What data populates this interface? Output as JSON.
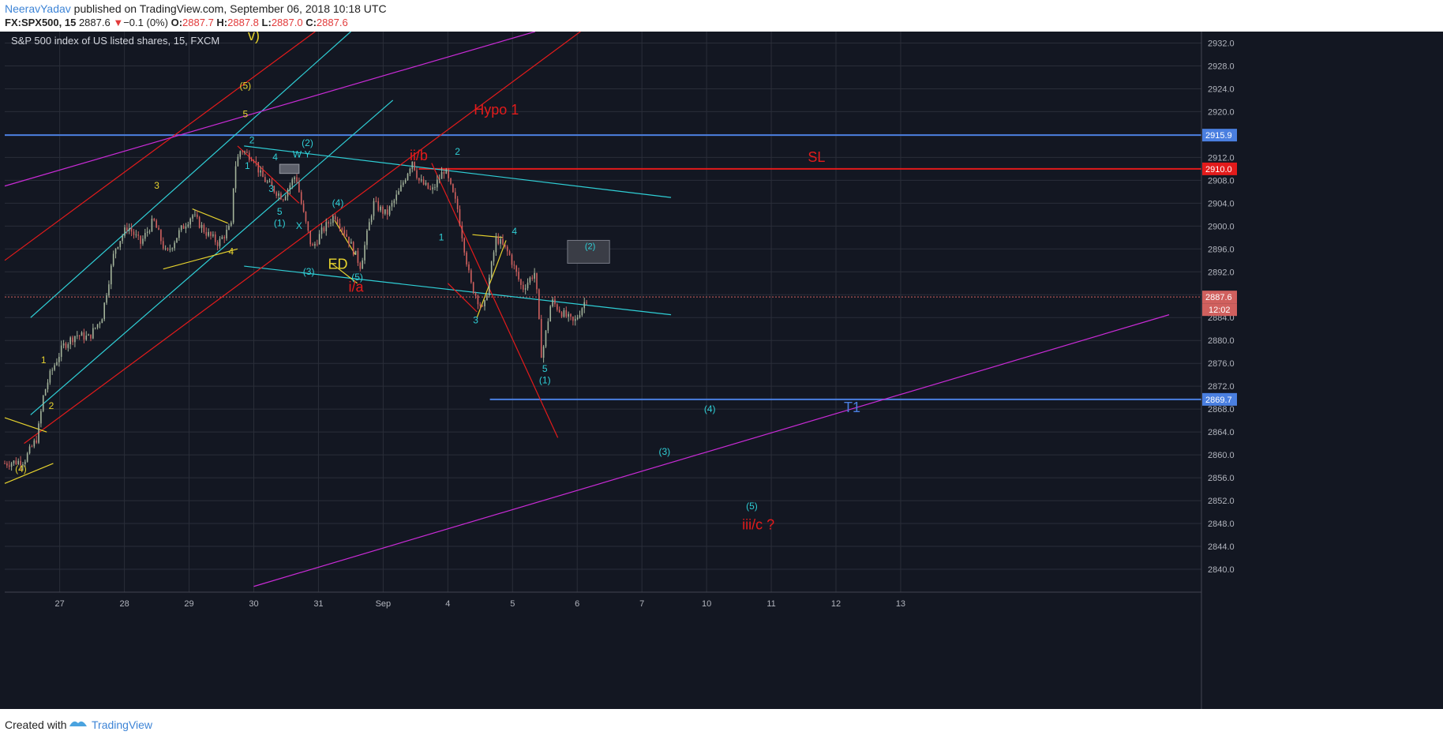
{
  "header": {
    "author": "NeeravYadav",
    "published": " published on TradingView.com, September 06, 2018 10:18 UTC",
    "symbol": "FX:SPX500, 15",
    "last": "2887.6",
    "arrow": "▼",
    "change": "−0.1 (0%)",
    "o_label": "O:",
    "o": "2887.7",
    "h_label": "H:",
    "h": "2887.8",
    "l_label": "L:",
    "l": "2887.0",
    "c_label": "C:",
    "c": "2887.6"
  },
  "footer": {
    "created_with": "Created with",
    "brand": "TradingView"
  },
  "colors": {
    "background": "#131722",
    "grid": "#2a2e39",
    "up": "#a3b39a",
    "down": "#d0605e",
    "cyan": "#2fcfd6",
    "yellow": "#e6d22e",
    "red": "#e31b1b",
    "magenta": "#c92bd6",
    "blue": "#4a7fe0"
  },
  "chart_data": {
    "type": "line",
    "title": "S&P 500 index of US listed shares, 15, FXCM",
    "ylim": [
      2836,
      2934
    ],
    "y_ticks": [
      2840.0,
      2844.0,
      2848.0,
      2852.0,
      2856.0,
      2860.0,
      2864.0,
      2868.0,
      2872.0,
      2876.0,
      2880.0,
      2884.0,
      2888.0,
      2892.0,
      2896.0,
      2900.0,
      2904.0,
      2908.0,
      2912.0,
      2916.0,
      2920.0,
      2924.0,
      2928.0,
      2932.0
    ],
    "x_ticks": [
      "27",
      "28",
      "29",
      "30",
      "31",
      "Sep",
      "4",
      "5",
      "6",
      "7",
      "10",
      "11",
      "12",
      "13"
    ],
    "x_tick_index": [
      0.85,
      1.85,
      2.85,
      3.85,
      4.85,
      5.85,
      6.85,
      7.85,
      8.85,
      9.85,
      10.85,
      11.85,
      12.85,
      13.85
    ],
    "xlim": [
      0,
      18.5
    ],
    "grid": true,
    "series": [
      {
        "x": [
          0.0,
          0.3,
          0.5,
          0.6,
          0.7,
          0.9,
          1.1,
          1.3,
          1.5,
          1.7,
          1.9,
          2.1,
          2.3,
          2.5,
          2.7,
          2.9,
          3.1,
          3.3,
          3.5,
          3.55,
          3.65,
          3.75,
          3.85,
          3.95,
          4.1,
          4.3,
          4.5,
          4.6,
          4.75,
          4.9,
          5.1,
          5.3,
          5.5,
          5.7,
          5.9,
          6.1,
          6.3,
          6.4,
          6.6,
          6.8,
          7.0,
          7.2,
          7.4,
          7.6,
          7.8,
          8.0,
          8.2,
          8.3,
          8.45,
          8.6,
          8.8,
          9.0
        ],
        "y": [
          2858.5,
          2859.0,
          2863.0,
          2870.5,
          2874.0,
          2879.0,
          2881.0,
          2880.5,
          2884.0,
          2896.0,
          2900.0,
          2897.0,
          2901.0,
          2895.0,
          2899.0,
          2902.0,
          2899.0,
          2897.0,
          2900.0,
          2910.0,
          2913.5,
          2912.5,
          2912.0,
          2909.0,
          2907.0,
          2905.0,
          2909.0,
          2903.0,
          2896.0,
          2899.0,
          2902.0,
          2898.0,
          2893.0,
          2904.0,
          2902.0,
          2906.0,
          2911.5,
          2908.0,
          2906.0,
          2910.0,
          2903.0,
          2890.0,
          2885.0,
          2898.0,
          2895.0,
          2889.0,
          2892.0,
          2877.0,
          2887.0,
          2885.0,
          2883.0,
          2887.6
        ]
      }
    ],
    "h_levels": [
      {
        "y": 2915.9,
        "label": "2915.9"
      },
      {
        "y": 2910.0,
        "label": "2910.0"
      },
      {
        "y": 2869.7,
        "label": "2869.7"
      }
    ],
    "last_price_label": "2887.6",
    "countdown_label": "12:02",
    "zone_label": "(2)",
    "annotations": [
      {
        "text": "v)",
        "x": 3.85,
        "y": 2932.5,
        "color": "yellow",
        "size": 18
      },
      {
        "text": "(5)",
        "x": 3.72,
        "y": 2924.0,
        "color": "yellow",
        "size": 12
      },
      {
        "text": "5",
        "x": 3.72,
        "y": 2919.0,
        "color": "yellow",
        "size": 12
      },
      {
        "text": "3",
        "x": 2.35,
        "y": 2906.5,
        "color": "yellow",
        "size": 12
      },
      {
        "text": "4",
        "x": 3.5,
        "y": 2895.0,
        "color": "yellow",
        "size": 12
      },
      {
        "text": "1",
        "x": 0.6,
        "y": 2876.0,
        "color": "yellow",
        "size": 12
      },
      {
        "text": "2",
        "x": 0.72,
        "y": 2868.0,
        "color": "yellow",
        "size": 12
      },
      {
        "text": "(4)",
        "x": 0.25,
        "y": 2857.0,
        "color": "yellow",
        "size": 12
      },
      {
        "text": "ED",
        "x": 5.15,
        "y": 2892.5,
        "color": "yellow",
        "size": 18
      },
      {
        "text": "2",
        "x": 3.82,
        "y": 2914.5,
        "color": "cyan",
        "size": 12
      },
      {
        "text": "1",
        "x": 3.75,
        "y": 2910.0,
        "color": "cyan",
        "size": 12
      },
      {
        "text": "4",
        "x": 4.18,
        "y": 2911.5,
        "color": "cyan",
        "size": 12
      },
      {
        "text": "3",
        "x": 4.12,
        "y": 2906.0,
        "color": "cyan",
        "size": 12
      },
      {
        "text": "5",
        "x": 4.25,
        "y": 2902.0,
        "color": "cyan",
        "size": 12
      },
      {
        "text": "(2)",
        "x": 4.68,
        "y": 2914.0,
        "color": "cyan",
        "size": 12
      },
      {
        "text": "W",
        "x": 4.52,
        "y": 2912.0,
        "color": "cyan",
        "size": 12
      },
      {
        "text": "Y",
        "x": 4.68,
        "y": 2912.0,
        "color": "cyan",
        "size": 12
      },
      {
        "text": "(1)",
        "x": 4.25,
        "y": 2900.0,
        "color": "cyan",
        "size": 12
      },
      {
        "text": "X",
        "x": 4.55,
        "y": 2899.5,
        "color": "cyan",
        "size": 12
      },
      {
        "text": "(4)",
        "x": 5.15,
        "y": 2903.5,
        "color": "cyan",
        "size": 12
      },
      {
        "text": "(3)",
        "x": 4.7,
        "y": 2891.5,
        "color": "cyan",
        "size": 12
      },
      {
        "text": "(5)",
        "x": 5.45,
        "y": 2890.5,
        "color": "cyan",
        "size": 12
      },
      {
        "text": "2",
        "x": 7.0,
        "y": 2912.5,
        "color": "cyan",
        "size": 12
      },
      {
        "text": "1",
        "x": 6.75,
        "y": 2897.5,
        "color": "cyan",
        "size": 12
      },
      {
        "text": "4",
        "x": 7.88,
        "y": 2898.5,
        "color": "cyan",
        "size": 12
      },
      {
        "text": "3",
        "x": 7.28,
        "y": 2883.0,
        "color": "cyan",
        "size": 12
      },
      {
        "text": "5",
        "x": 8.35,
        "y": 2874.5,
        "color": "cyan",
        "size": 12
      },
      {
        "text": "(1)",
        "x": 8.35,
        "y": 2872.5,
        "color": "cyan",
        "size": 12
      },
      {
        "text": "(4)",
        "x": 10.9,
        "y": 2867.5,
        "color": "cyan",
        "size": 12
      },
      {
        "text": "(3)",
        "x": 10.2,
        "y": 2860.0,
        "color": "cyan",
        "size": 12
      },
      {
        "text": "(5)",
        "x": 11.55,
        "y": 2850.5,
        "color": "cyan",
        "size": 12
      },
      {
        "text": "Hypo 1",
        "x": 7.6,
        "y": 2919.5,
        "color": "red",
        "size": 18
      },
      {
        "text": "ii/b",
        "x": 6.4,
        "y": 2911.5,
        "color": "red",
        "size": 18
      },
      {
        "text": "i/a",
        "x": 5.43,
        "y": 2888.5,
        "color": "red",
        "size": 18
      },
      {
        "text": "SL",
        "x": 12.55,
        "y": 2911.2,
        "color": "red",
        "size": 18
      },
      {
        "text": "iii/c ?",
        "x": 11.65,
        "y": 2847.0,
        "color": "red",
        "size": 18
      },
      {
        "text": "T1",
        "x": 13.1,
        "y": 2867.5,
        "color": "blue",
        "size": 18
      }
    ]
  }
}
